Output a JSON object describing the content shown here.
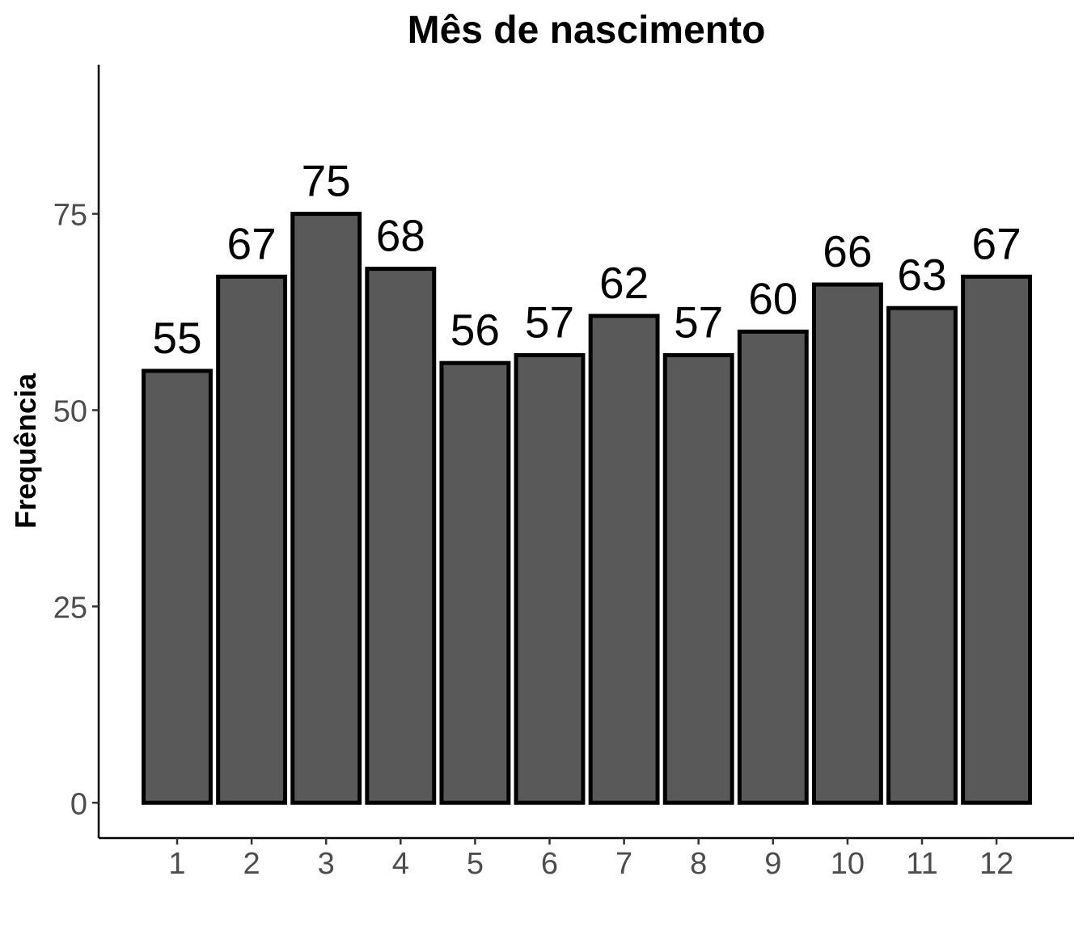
{
  "chart_data": {
    "type": "bar",
    "title": "Mês de nascimento",
    "xlabel": "",
    "ylabel": "Frequência",
    "categories": [
      "1",
      "2",
      "3",
      "4",
      "5",
      "6",
      "7",
      "8",
      "9",
      "10",
      "11",
      "12"
    ],
    "values": [
      55,
      67,
      75,
      68,
      56,
      57,
      62,
      57,
      60,
      66,
      63,
      67
    ],
    "data_labels": [
      "55",
      "67",
      "75",
      "68",
      "56",
      "57",
      "62",
      "57",
      "60",
      "66",
      "63",
      "67"
    ],
    "ylim": [
      -4.5,
      94
    ],
    "yticks": [
      0,
      25,
      50,
      75
    ],
    "ytick_labels": [
      "0",
      "25",
      "50",
      "75"
    ],
    "grid": false,
    "legend": "none",
    "colors": {
      "bar_fill": "#595959",
      "bar_stroke": "#000000",
      "tick_text": "#4d4d4d"
    }
  }
}
